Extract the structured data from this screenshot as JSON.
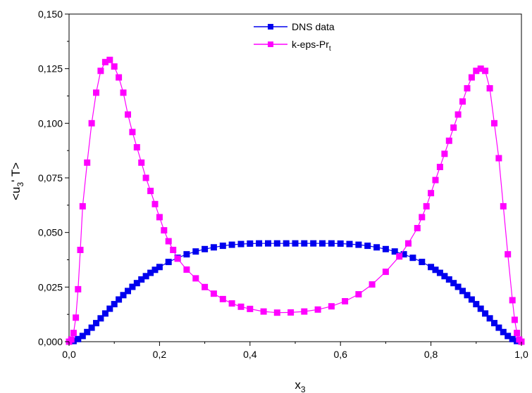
{
  "chart_data": {
    "type": "line",
    "xlabel": {
      "main": "x",
      "sub": "3"
    },
    "ylabel": {
      "pre": "<u",
      "sub": "3",
      "post": "' T>"
    },
    "xlim": [
      0.0,
      1.0
    ],
    "ylim": [
      0.0,
      0.15
    ],
    "x_ticks": [
      0.0,
      0.2,
      0.4,
      0.6,
      0.8,
      1.0
    ],
    "x_tick_labels": [
      "0,0",
      "0,2",
      "0,4",
      "0,6",
      "0,8",
      "1,0"
    ],
    "y_ticks": [
      0.0,
      0.025,
      0.05,
      0.075,
      0.1,
      0.125,
      0.15
    ],
    "y_tick_labels": [
      "0,000",
      "0,025",
      "0,050",
      "0,075",
      "0,100",
      "0,125",
      "0,150"
    ],
    "grid": false,
    "legend_position": "top-center",
    "series": [
      {
        "name": "DNS data",
        "color": "#0000ee",
        "marker": "square",
        "x": [
          0.0,
          0.01,
          0.02,
          0.03,
          0.04,
          0.05,
          0.06,
          0.07,
          0.08,
          0.09,
          0.1,
          0.11,
          0.12,
          0.13,
          0.14,
          0.15,
          0.16,
          0.17,
          0.18,
          0.19,
          0.2,
          0.22,
          0.24,
          0.26,
          0.28,
          0.3,
          0.32,
          0.34,
          0.36,
          0.38,
          0.4,
          0.42,
          0.44,
          0.46,
          0.48,
          0.5,
          0.52,
          0.54,
          0.56,
          0.58,
          0.6,
          0.62,
          0.64,
          0.66,
          0.68,
          0.7,
          0.72,
          0.74,
          0.76,
          0.78,
          0.8,
          0.81,
          0.82,
          0.83,
          0.84,
          0.85,
          0.86,
          0.87,
          0.88,
          0.89,
          0.9,
          0.91,
          0.92,
          0.93,
          0.94,
          0.95,
          0.96,
          0.97,
          0.98,
          0.99,
          1.0
        ],
        "y": [
          0.0,
          0.0003,
          0.0012,
          0.0026,
          0.0044,
          0.0064,
          0.0085,
          0.0107,
          0.0129,
          0.0151,
          0.0172,
          0.0193,
          0.0213,
          0.0232,
          0.0251,
          0.0268,
          0.0285,
          0.03,
          0.0315,
          0.0329,
          0.0342,
          0.0365,
          0.0384,
          0.04,
          0.0413,
          0.0424,
          0.0432,
          0.0439,
          0.0444,
          0.0447,
          0.0449,
          0.045,
          0.045,
          0.045,
          0.045,
          0.045,
          0.045,
          0.045,
          0.045,
          0.045,
          0.0449,
          0.0447,
          0.0444,
          0.0439,
          0.0432,
          0.0424,
          0.0413,
          0.04,
          0.0384,
          0.0365,
          0.0342,
          0.0329,
          0.0315,
          0.03,
          0.0285,
          0.0268,
          0.0251,
          0.0232,
          0.0213,
          0.0193,
          0.0172,
          0.0151,
          0.0129,
          0.0107,
          0.0085,
          0.0064,
          0.0044,
          0.0026,
          0.0012,
          0.0003,
          0.0
        ]
      },
      {
        "name": "k-eps-Pr",
        "name_sub": "t",
        "color": "#ff00ff",
        "marker": "square",
        "x": [
          0.0,
          0.005,
          0.01,
          0.015,
          0.02,
          0.025,
          0.03,
          0.04,
          0.05,
          0.06,
          0.07,
          0.08,
          0.09,
          0.1,
          0.11,
          0.12,
          0.13,
          0.14,
          0.15,
          0.16,
          0.17,
          0.18,
          0.19,
          0.2,
          0.21,
          0.22,
          0.23,
          0.24,
          0.26,
          0.28,
          0.3,
          0.32,
          0.34,
          0.36,
          0.38,
          0.4,
          0.43,
          0.46,
          0.49,
          0.52,
          0.55,
          0.58,
          0.61,
          0.64,
          0.67,
          0.7,
          0.73,
          0.75,
          0.77,
          0.78,
          0.79,
          0.8,
          0.81,
          0.82,
          0.83,
          0.84,
          0.85,
          0.86,
          0.87,
          0.88,
          0.89,
          0.9,
          0.91,
          0.92,
          0.93,
          0.94,
          0.95,
          0.96,
          0.97,
          0.98,
          0.985,
          0.99,
          0.995,
          1.0
        ],
        "y": [
          0.0,
          0.001,
          0.004,
          0.011,
          0.024,
          0.042,
          0.062,
          0.082,
          0.1,
          0.114,
          0.124,
          0.128,
          0.129,
          0.126,
          0.121,
          0.114,
          0.104,
          0.096,
          0.089,
          0.082,
          0.075,
          0.069,
          0.063,
          0.057,
          0.051,
          0.046,
          0.042,
          0.038,
          0.033,
          0.029,
          0.025,
          0.022,
          0.0195,
          0.0175,
          0.016,
          0.015,
          0.0138,
          0.0133,
          0.0134,
          0.0138,
          0.0147,
          0.0162,
          0.0185,
          0.0217,
          0.0262,
          0.032,
          0.039,
          0.045,
          0.052,
          0.057,
          0.062,
          0.068,
          0.074,
          0.08,
          0.086,
          0.092,
          0.098,
          0.104,
          0.11,
          0.116,
          0.121,
          0.124,
          0.125,
          0.124,
          0.116,
          0.1,
          0.084,
          0.062,
          0.04,
          0.019,
          0.01,
          0.004,
          0.001,
          0.0
        ]
      }
    ]
  }
}
